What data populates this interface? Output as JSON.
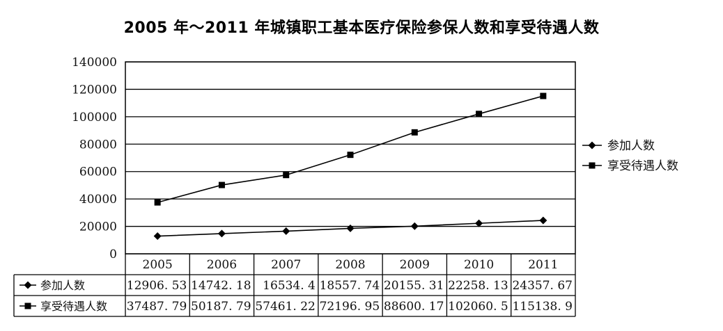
{
  "chart_data": {
    "type": "line",
    "title": "2005 年～2011 年城镇职工基本医疗保险参保人数和享受待遇人数",
    "categories": [
      "2005",
      "2006",
      "2007",
      "2008",
      "2009",
      "2010",
      "2011"
    ],
    "y_ticks": [
      "0",
      "20000",
      "40000",
      "60000",
      "80000",
      "100000",
      "120000",
      "140000"
    ],
    "ylim": [
      0,
      140000
    ],
    "grid": "horizontal",
    "legend_position": "right",
    "series": [
      {
        "name": "参加人数",
        "marker": "diamond",
        "values": [
          12906.53,
          14742.18,
          16534.4,
          18557.74,
          20155.31,
          22258.13,
          24357.67
        ],
        "labels": [
          "12906. 53",
          "14742. 18",
          "16534. 4",
          "18557. 74",
          "20155. 31",
          "22258. 13",
          "24357. 67"
        ]
      },
      {
        "name": "享受待遇人数",
        "marker": "square",
        "values": [
          37487.79,
          50187.79,
          57461.22,
          72196.95,
          88600.17,
          102060.5,
          115138.9
        ],
        "labels": [
          "37487. 79",
          "50187. 79",
          "57461. 22",
          "72196. 95",
          "88600. 17",
          "102060. 5",
          "115138. 9"
        ]
      }
    ],
    "colors": {
      "line": "#000000",
      "grid": "#000000",
      "background": "#ffffff"
    }
  }
}
